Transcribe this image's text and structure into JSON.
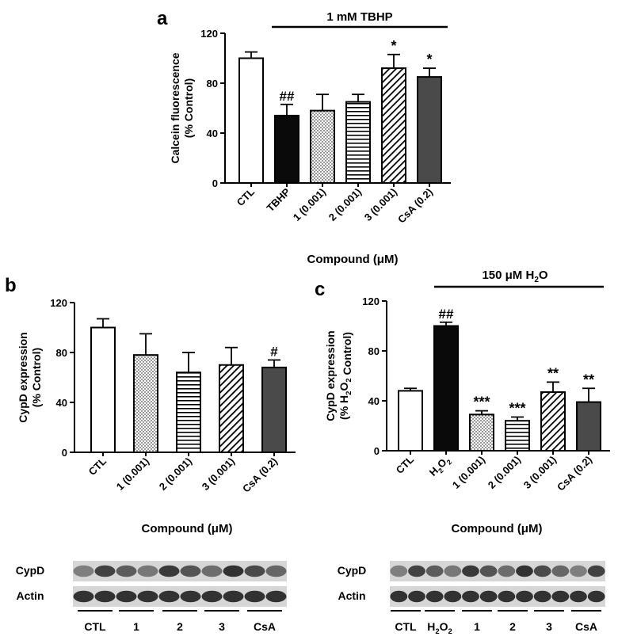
{
  "panels": {
    "a": {
      "letter": "a",
      "treatment": "1 mM TBHP"
    },
    "b": {
      "letter": "b"
    },
    "c": {
      "letter": "c",
      "treatment_pre": "150 μM H",
      "treatment_sub": "2",
      "treatment_post": "O"
    }
  },
  "blots": {
    "b": {
      "rows": [
        "CypD",
        "Actin"
      ],
      "groups": [
        "CTL",
        "1",
        "2",
        "3",
        "CsA"
      ]
    },
    "c": {
      "rows": [
        "CypD",
        "Actin"
      ],
      "groups": [
        "CTL",
        "H2O2",
        "1",
        "2",
        "3",
        "CsA"
      ]
    }
  },
  "chart_data": [
    {
      "type": "bar",
      "panel": "a",
      "ylabel": [
        "Calcein fluorescence",
        "(% Control)"
      ],
      "xlabel": "Compound (μM)",
      "ylim": [
        0,
        120
      ],
      "yticks": [
        0,
        40,
        80,
        120
      ],
      "categories": [
        "CTL",
        "TBHP",
        "1 (0.001)",
        "2 (0.001)",
        "3 (0.001)",
        "CsA (0.2)"
      ],
      "values": [
        100,
        54,
        58,
        65,
        92,
        85
      ],
      "errors": [
        5,
        9,
        13,
        6,
        11,
        7
      ],
      "annotations": [
        "",
        "##",
        "",
        "",
        "*",
        "*"
      ],
      "fills": [
        "white",
        "black",
        "dots",
        "hlines",
        "diag",
        "darkgray"
      ]
    },
    {
      "type": "bar",
      "panel": "b",
      "ylabel": [
        "CypD expression",
        "(% Control)"
      ],
      "xlabel": "Compound (μM)",
      "ylim": [
        0,
        120
      ],
      "yticks": [
        0,
        40,
        80,
        120
      ],
      "categories": [
        "CTL",
        "1 (0.001)",
        "2 (0.001)",
        "3 (0.001)",
        "CsA (0.2)"
      ],
      "values": [
        100,
        78,
        64,
        70,
        68
      ],
      "errors": [
        7,
        17,
        16,
        14,
        6
      ],
      "annotations": [
        "",
        "",
        "",
        "",
        "#"
      ],
      "fills": [
        "white",
        "dots",
        "hlines",
        "diag",
        "darkgray"
      ]
    },
    {
      "type": "bar",
      "panel": "c",
      "ylabel": [
        "CypD expression",
        "(% H2O2 Control)"
      ],
      "xlabel": "Compound (μM)",
      "ylim": [
        0,
        120
      ],
      "yticks": [
        0,
        40,
        80,
        120
      ],
      "categories": [
        "CTL",
        "H2O2",
        "1 (0.001)",
        "2 (0.001)",
        "3 (0.001)",
        "CsA (0.2)"
      ],
      "values": [
        48,
        100,
        29,
        24,
        47,
        39
      ],
      "errors": [
        2,
        3,
        3,
        3,
        8,
        11
      ],
      "annotations": [
        "",
        "##",
        "***",
        "***",
        "**",
        "**"
      ],
      "fills": [
        "white",
        "black",
        "dots",
        "hlines",
        "diag",
        "darkgray"
      ]
    }
  ]
}
